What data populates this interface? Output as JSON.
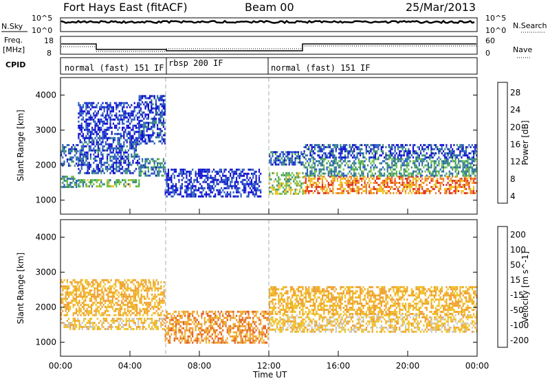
{
  "header": {
    "radar": "Fort Hays East (fitACF)",
    "beam": "Beam 00",
    "date": "25/Mar/2013"
  },
  "noise_panel": {
    "left_label": "N.Sky",
    "right_label": "N.Search",
    "left_ticks": [
      "10^5",
      "10^0"
    ],
    "right_ticks": [
      "10^5",
      "10^0"
    ]
  },
  "freq_panel": {
    "left_label_line1": "Freq.",
    "left_label_line2": "[MHz]",
    "left_ticks": [
      "18",
      "8"
    ],
    "right_label": "Nave",
    "right_ticks": [
      "60",
      "0"
    ]
  },
  "cpid_panel": {
    "label": "CPID",
    "segments": [
      {
        "name": "normal (fast) 151 IF",
        "start": 0,
        "end": 6
      },
      {
        "name": "rbsp 200 IF",
        "start": 6,
        "end": 12
      },
      {
        "name": "normal (fast) 151 IF",
        "start": 12,
        "end": 24
      }
    ]
  },
  "chart_data": [
    {
      "type": "heatmap",
      "title": "",
      "xlabel": "Time UT",
      "ylabel": "Slant Range [km]",
      "xlim": [
        0,
        24
      ],
      "ylim": [
        600,
        4500
      ],
      "x_ticks": [
        "00:00",
        "04:00",
        "08:00",
        "12:00",
        "16:00",
        "20:00",
        "00:00"
      ],
      "y_ticks": [
        "1000",
        "2000",
        "3000",
        "4000"
      ],
      "colorbar_label": "Power [dB]",
      "colorbar_ticks": [
        "28",
        "24",
        "20",
        "16",
        "12",
        "8",
        "4"
      ],
      "colorbar_colors": [
        "#1010d0",
        "#2a5fc0",
        "#3b8f70",
        "#6cc04a",
        "#f0c020",
        "#f08020",
        "#e03020",
        "#ff0000"
      ],
      "series": [
        {
          "x_start": 0.0,
          "x_end": 1.0,
          "ranges": [
            [
              1400,
              1700,
              10
            ],
            [
              2000,
              2600,
              6
            ]
          ]
        },
        {
          "x_start": 1.0,
          "x_end": 4.5,
          "ranges": [
            [
              1400,
              1600,
              12
            ],
            [
              1800,
              2800,
              5
            ],
            [
              2800,
              3800,
              3
            ]
          ]
        },
        {
          "x_start": 4.5,
          "x_end": 6.0,
          "ranges": [
            [
              1700,
              2200,
              8
            ],
            [
              2600,
              4000,
              4
            ]
          ]
        },
        {
          "x_start": 6.0,
          "x_end": 11.5,
          "ranges": [
            [
              1100,
              1900,
              3
            ]
          ]
        },
        {
          "x_start": 12.0,
          "x_end": 14.0,
          "ranges": [
            [
              1200,
              1800,
              14
            ],
            [
              2000,
              2400,
              6
            ]
          ]
        },
        {
          "x_start": 14.0,
          "x_end": 24.0,
          "ranges": [
            [
              1200,
              1700,
              22
            ],
            [
              1700,
              2200,
              10
            ],
            [
              2200,
              2600,
              5
            ]
          ]
        }
      ]
    },
    {
      "type": "heatmap",
      "title": "",
      "xlabel": "Time UT",
      "ylabel": "Slant Range [km]",
      "xlim": [
        0,
        24
      ],
      "ylim": [
        600,
        4500
      ],
      "x_ticks": [
        "00:00",
        "04:00",
        "08:00",
        "12:00",
        "16:00",
        "20:00",
        "00:00"
      ],
      "y_ticks": [
        "1000",
        "2000",
        "3000",
        "4000"
      ],
      "colorbar_label": "Velocity [m s^-1]",
      "colorbar_ticks": [
        "200",
        "100",
        "50",
        "15",
        "-15",
        "-50",
        "-100",
        "-200"
      ],
      "colorbar_colors": [
        "#1010c0",
        "#2a7060",
        "#60c040",
        "#c8c8c8",
        "#f0c020",
        "#f0a030",
        "#e06020",
        "#e02020"
      ],
      "series": [
        {
          "x_start": 0.0,
          "x_end": 6.0,
          "ranges": [
            [
              1400,
              1700,
              0
            ],
            [
              1800,
              2800,
              -20
            ]
          ]
        },
        {
          "x_start": 6.0,
          "x_end": 12.0,
          "ranges": [
            [
              1000,
              1900,
              -40
            ]
          ]
        },
        {
          "x_start": 12.0,
          "x_end": 24.0,
          "ranges": [
            [
              1300,
              1800,
              0
            ],
            [
              1800,
              2600,
              -15
            ]
          ]
        }
      ]
    }
  ]
}
